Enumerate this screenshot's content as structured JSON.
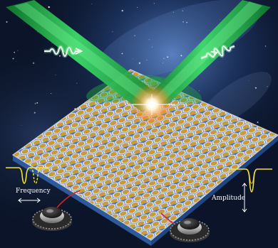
{
  "labels": {
    "frequency": "Frequency",
    "amplitude": "Amplitude"
  },
  "colors": {
    "space_background": "#0b1428",
    "nebula": "#3b5fa8",
    "laser_beam": "#27c24a",
    "pulse_glyph": "#ffffff",
    "substrate": "#3f74c9",
    "hex_cell_fill": "#c99a3a",
    "lattice_bonds": "#e4e4e4",
    "spectrum_line": "#f4e23a",
    "dial_body": "#2a2a2a",
    "dial_ring": "#c9c9c9",
    "wire": "#d22525",
    "flash": "#fff4d6"
  },
  "icons": {
    "left_beam_pulse": "wave-packet-icon",
    "right_beam_pulse": "wave-packet-icon",
    "left_dial": "knob-icon",
    "right_dial": "knob-icon",
    "frequency_arrow": "double-arrow-horizontal-icon",
    "amplitude_arrow": "double-arrow-vertical-icon"
  }
}
